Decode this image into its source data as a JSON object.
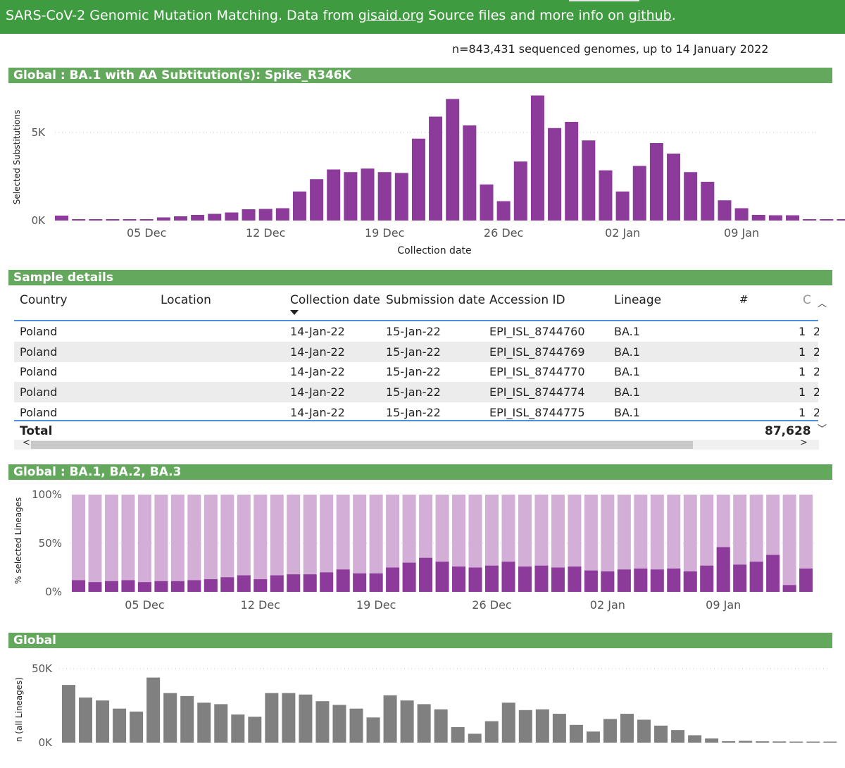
{
  "banner": {
    "prefix": "SARS-CoV-2 Genomic Mutation Matching. Data from ",
    "link1": "gisaid.org",
    "middle": " Source files and more info on ",
    "link2": "github",
    "suffix": "."
  },
  "meta_text": "n=843,431 sequenced genomes, up to 14 January 2022",
  "section1": {
    "title": "Global : BA.1 with AA Subtitution(s): Spike_R346K",
    "ylabel": "Selected Substitutions",
    "xlabel": "Collection date",
    "yticks": [
      "5K",
      "0K"
    ],
    "xticks": [
      "05 Dec",
      "12 Dec",
      "19 Dec",
      "26 Dec",
      "02 Jan",
      "09 Jan"
    ]
  },
  "table": {
    "title": "Sample details",
    "columns": [
      "Country",
      "Location",
      "Collection date",
      "Submission date",
      "Accession ID",
      "Lineage",
      "#"
    ],
    "rows": [
      {
        "country": "Poland",
        "location": "",
        "collection": "14-Jan-22",
        "submission": "15-Jan-22",
        "accession": "EPI_ISL_8744760",
        "lineage": "BA.1",
        "count": "1"
      },
      {
        "country": "Poland",
        "location": "",
        "collection": "14-Jan-22",
        "submission": "15-Jan-22",
        "accession": "EPI_ISL_8744769",
        "lineage": "BA.1",
        "count": "1"
      },
      {
        "country": "Poland",
        "location": "",
        "collection": "14-Jan-22",
        "submission": "15-Jan-22",
        "accession": "EPI_ISL_8744770",
        "lineage": "BA.1",
        "count": "1"
      },
      {
        "country": "Poland",
        "location": "",
        "collection": "14-Jan-22",
        "submission": "15-Jan-22",
        "accession": "EPI_ISL_8744774",
        "lineage": "BA.1",
        "count": "1"
      },
      {
        "country": "Poland",
        "location": "",
        "collection": "14-Jan-22",
        "submission": "15-Jan-22",
        "accession": "EPI_ISL_8744775",
        "lineage": "BA.1",
        "count": "1"
      }
    ],
    "total_label": "Total",
    "total_value": "87,628"
  },
  "section2": {
    "title": "Global : BA.1, BA.2, BA.3",
    "ylabel": "% selected Lineages",
    "yticks": [
      "100%",
      "50%",
      "0%"
    ],
    "xticks": [
      "05 Dec",
      "12 Dec",
      "19 Dec",
      "26 Dec",
      "02 Jan",
      "09 Jan"
    ]
  },
  "section3": {
    "title": "Global",
    "ylabel": "n (all Lineages)",
    "yticks": [
      "50K",
      "0K"
    ]
  },
  "colors": {
    "banner": "#3f9b3f",
    "section_header": "#63a85c",
    "selected_bar": "#8c3b9b",
    "selected_bg_bar": "#d3afd7",
    "total_bar": "#808080",
    "table_line": "#4a90d9"
  },
  "chart_data": [
    {
      "type": "bar",
      "title": "Global : BA.1 with AA Subtitution(s): Spike_R346K",
      "xlabel": "Collection date",
      "ylabel": "Selected Substitutions",
      "ylim": [
        0,
        7000
      ],
      "x_start": "2021-11-30",
      "x_ticks": [
        "05 Dec",
        "12 Dec",
        "19 Dec",
        "26 Dec",
        "02 Jan",
        "09 Jan"
      ],
      "grid": true,
      "series": [
        {
          "values": [
            280,
            40,
            60,
            60,
            60,
            60,
            180,
            240,
            320,
            380,
            460,
            640,
            660,
            700,
            1650,
            2350,
            2900,
            2750,
            2950,
            2750,
            2700,
            4650,
            5900,
            6900,
            5400,
            2050,
            1100,
            3350,
            7100,
            5250,
            5600,
            4550,
            2850,
            1650,
            3100,
            4400,
            3800,
            2750,
            2200,
            1150,
            700,
            320,
            300,
            300,
            60,
            60,
            60
          ]
        }
      ]
    },
    {
      "type": "bar",
      "title": "Global : BA.1, BA.2, BA.3",
      "ylabel": "% selected Lineages",
      "ylim": [
        0,
        100
      ],
      "x_start": "2021-12-01",
      "x_ticks": [
        "05 Dec",
        "12 Dec",
        "19 Dec",
        "26 Dec",
        "02 Jan",
        "09 Jan"
      ],
      "grid": true,
      "stacked_percent": true,
      "series": [
        {
          "values": [
            12,
            10,
            11,
            12,
            10,
            11,
            11,
            12,
            13,
            15,
            17,
            13,
            17,
            18,
            18,
            20,
            23,
            19,
            19,
            25,
            30,
            35,
            31,
            26,
            25,
            27,
            31,
            26,
            27,
            25,
            26,
            22,
            21,
            23,
            24,
            23,
            24,
            21,
            27,
            46,
            28,
            31,
            38,
            7,
            24
          ]
        }
      ]
    },
    {
      "type": "bar",
      "title": "Global",
      "ylabel": "n (all Lineages)",
      "ylim": [
        0,
        60000
      ],
      "x_start": "2021-11-30",
      "grid": true,
      "series": [
        {
          "values": [
            39000,
            30500,
            28500,
            23000,
            21000,
            44000,
            33500,
            31500,
            27000,
            26000,
            19000,
            17500,
            33500,
            33500,
            32500,
            28000,
            25500,
            23000,
            17000,
            32000,
            28500,
            26000,
            22500,
            10500,
            6000,
            14500,
            27000,
            22000,
            22500,
            19500,
            12000,
            7500,
            16000,
            19500,
            15500,
            11500,
            8500,
            5000,
            2800,
            1000,
            1200,
            900,
            800,
            500,
            400,
            300
          ]
        }
      ]
    }
  ]
}
